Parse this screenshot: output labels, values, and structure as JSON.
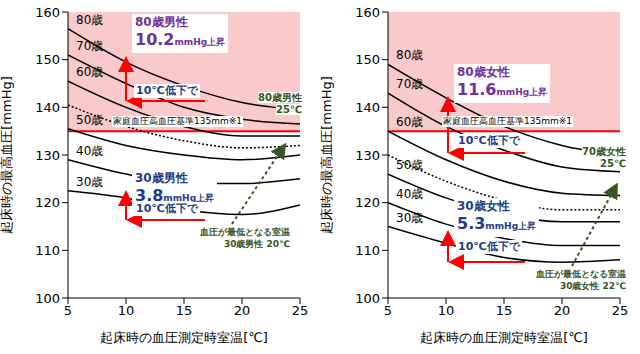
{
  "chart_data": [
    {
      "type": "line",
      "x_label": "起床時の血圧測定時室温[℃]",
      "y_label": "起床時の最高血圧[mmHg]",
      "x": [
        5,
        10,
        15,
        20,
        25
      ],
      "xlim": [
        5,
        25
      ],
      "xticks": [
        5,
        10,
        15,
        20,
        25
      ],
      "ylim": [
        100,
        160
      ],
      "yticks": [
        100,
        110,
        120,
        130,
        140,
        150,
        160
      ],
      "grid": false,
      "series": [
        {
          "name": "80歳",
          "color": "#000000",
          "line_style": "solid",
          "values": [
            156.5,
            149.5,
            144.5,
            141,
            139.5
          ]
        },
        {
          "name": "70歳",
          "color": "#000000",
          "line_style": "solid",
          "values": [
            151,
            145,
            140,
            137.5,
            136.5
          ]
        },
        {
          "name": "60歳",
          "color": "#000000",
          "line_style": "solid",
          "values": [
            145.5,
            140,
            136,
            134,
            134
          ]
        },
        {
          "color": "#000000",
          "line_style": "dotted",
          "values": [
            140.5,
            136,
            133,
            131.5,
            132
          ]
        },
        {
          "name": "50歳",
          "color": "#000000",
          "line_style": "solid",
          "values": [
            135.5,
            132,
            130,
            129,
            130
          ]
        },
        {
          "name": "40歳",
          "color": "#000000",
          "line_style": "solid",
          "values": [
            129,
            126,
            124,
            124,
            125
          ]
        },
        {
          "name": "30歳",
          "color": "#000000",
          "line_style": "solid",
          "values": [
            122.5,
            121,
            118.5,
            117.5,
            119.5
          ]
        }
      ],
      "threshold": {
        "value": 135,
        "label": "家庭血圧高血圧基準135mm※1",
        "color": "#ff0000"
      },
      "annotations": [
        {
          "label": "80歳男性",
          "rise": 10.2,
          "unit": "mmHg上昇",
          "drop": "10℃低下で"
        },
        {
          "label": "30歳男性",
          "rise": 3.8,
          "unit": "mmHg上昇",
          "drop": "10℃低下で"
        }
      ],
      "min_notes": [
        [
          "80歳男性",
          "25℃"
        ],
        [
          "血圧が最低となる室温",
          "30歳男性 20℃"
        ]
      ]
    },
    {
      "type": "line",
      "x_label": "起床時の血圧測定時室温[℃]",
      "y_label": "起床時の最高血圧[mmHg]",
      "x": [
        5,
        10,
        15,
        20,
        25
      ],
      "xlim": [
        5,
        25
      ],
      "xticks": [
        5,
        10,
        15,
        20,
        25
      ],
      "ylim": [
        100,
        160
      ],
      "yticks": [
        100,
        110,
        120,
        130,
        140,
        150,
        160
      ],
      "grid": false,
      "series": [
        {
          "name": "80歳",
          "color": "#000000",
          "line_style": "solid",
          "values": [
            149,
            142,
            136,
            132,
            130
          ]
        },
        {
          "name": "70歳",
          "color": "#000000",
          "line_style": "solid",
          "values": [
            143,
            136,
            131,
            127.5,
            126.5
          ]
        },
        {
          "name": "60歳",
          "color": "#000000",
          "line_style": "solid",
          "values": [
            135,
            129,
            124.5,
            122,
            121.5
          ]
        },
        {
          "color": "#000000",
          "line_style": "dotted",
          "values": [
            130,
            124.5,
            120.5,
            118.5,
            118.5
          ]
        },
        {
          "name": "50歳",
          "color": "#000000",
          "line_style": "solid",
          "values": [
            126,
            121,
            117.5,
            116,
            116
          ]
        },
        {
          "name": "40歳",
          "color": "#000000",
          "line_style": "solid",
          "values": [
            120,
            115.5,
            112.5,
            111,
            111
          ]
        },
        {
          "name": "30歳",
          "color": "#000000",
          "line_style": "solid",
          "values": [
            115,
            111.5,
            108.5,
            107.5,
            108
          ]
        }
      ],
      "threshold": {
        "value": 135,
        "label": "家庭血圧高血圧基準135mm※1",
        "color": "#ff0000"
      },
      "annotations": [
        {
          "label": "80歳女性",
          "rise": 11.6,
          "unit": "mmHg上昇",
          "drop": "10℃低下で"
        },
        {
          "label": "30歳女性",
          "rise": 5.3,
          "unit": "mmHg上昇",
          "drop": "10℃低下で"
        }
      ],
      "min_notes": [
        [
          "70歳女性",
          "25℃"
        ],
        [
          "血圧が最低となる室温",
          "30歳女性 22℃"
        ]
      ]
    }
  ]
}
